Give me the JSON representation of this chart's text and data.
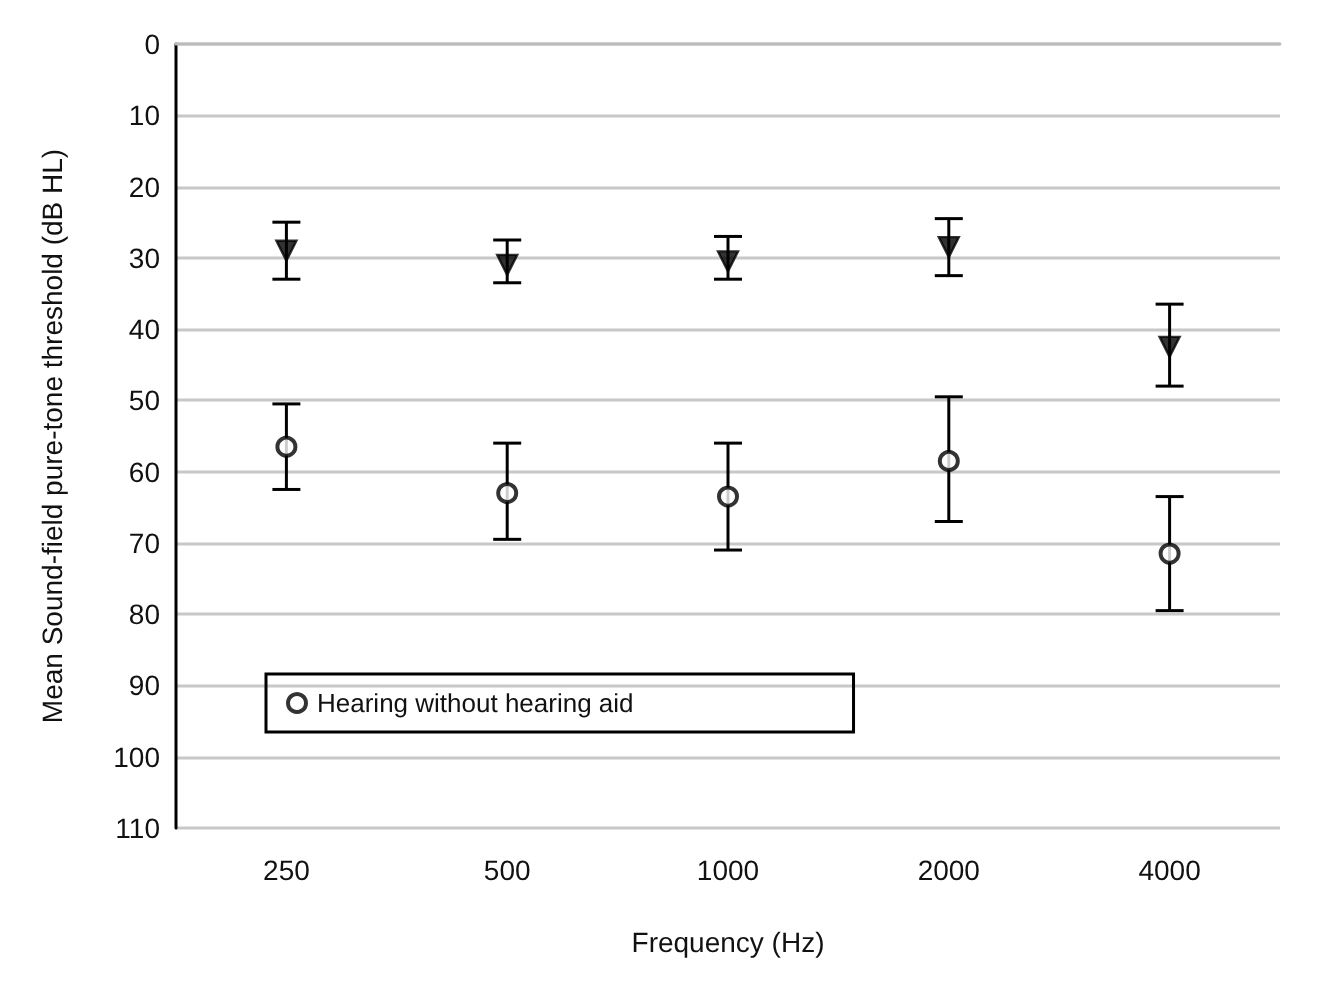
{
  "chart_data": {
    "type": "scatter",
    "xlabel": "Frequency (Hz)",
    "ylabel": "Mean Sound-field pure-tone threshold (dB HL)",
    "categories": [
      "250",
      "500",
      "1000",
      "2000",
      "4000"
    ],
    "series": [
      {
        "color": "#000000",
        "marker": "triangle",
        "values": [
          29,
          31,
          30.5,
          28.5,
          42.5
        ],
        "errors": [
          [
            25,
            33
          ],
          [
            27.5,
            33.5
          ],
          [
            27,
            33
          ],
          [
            24.5,
            32.5
          ],
          [
            36.5,
            48
          ]
        ]
      },
      {
        "name": "Hearing without hearing aid",
        "color": "#000000",
        "marker": "circle",
        "values": [
          56.5,
          63,
          63.5,
          58.5,
          71.5
        ],
        "errors": [
          [
            50.5,
            62.5
          ],
          [
            56,
            69.5
          ],
          [
            56,
            71
          ],
          [
            49.5,
            67
          ],
          [
            63.5,
            79.5
          ]
        ]
      }
    ],
    "ylim": [
      110,
      0
    ],
    "yticks": [
      0,
      10,
      20,
      30,
      40,
      50,
      60,
      70,
      80,
      90,
      100,
      110
    ],
    "grid": "y",
    "legend": "bottom left"
  }
}
